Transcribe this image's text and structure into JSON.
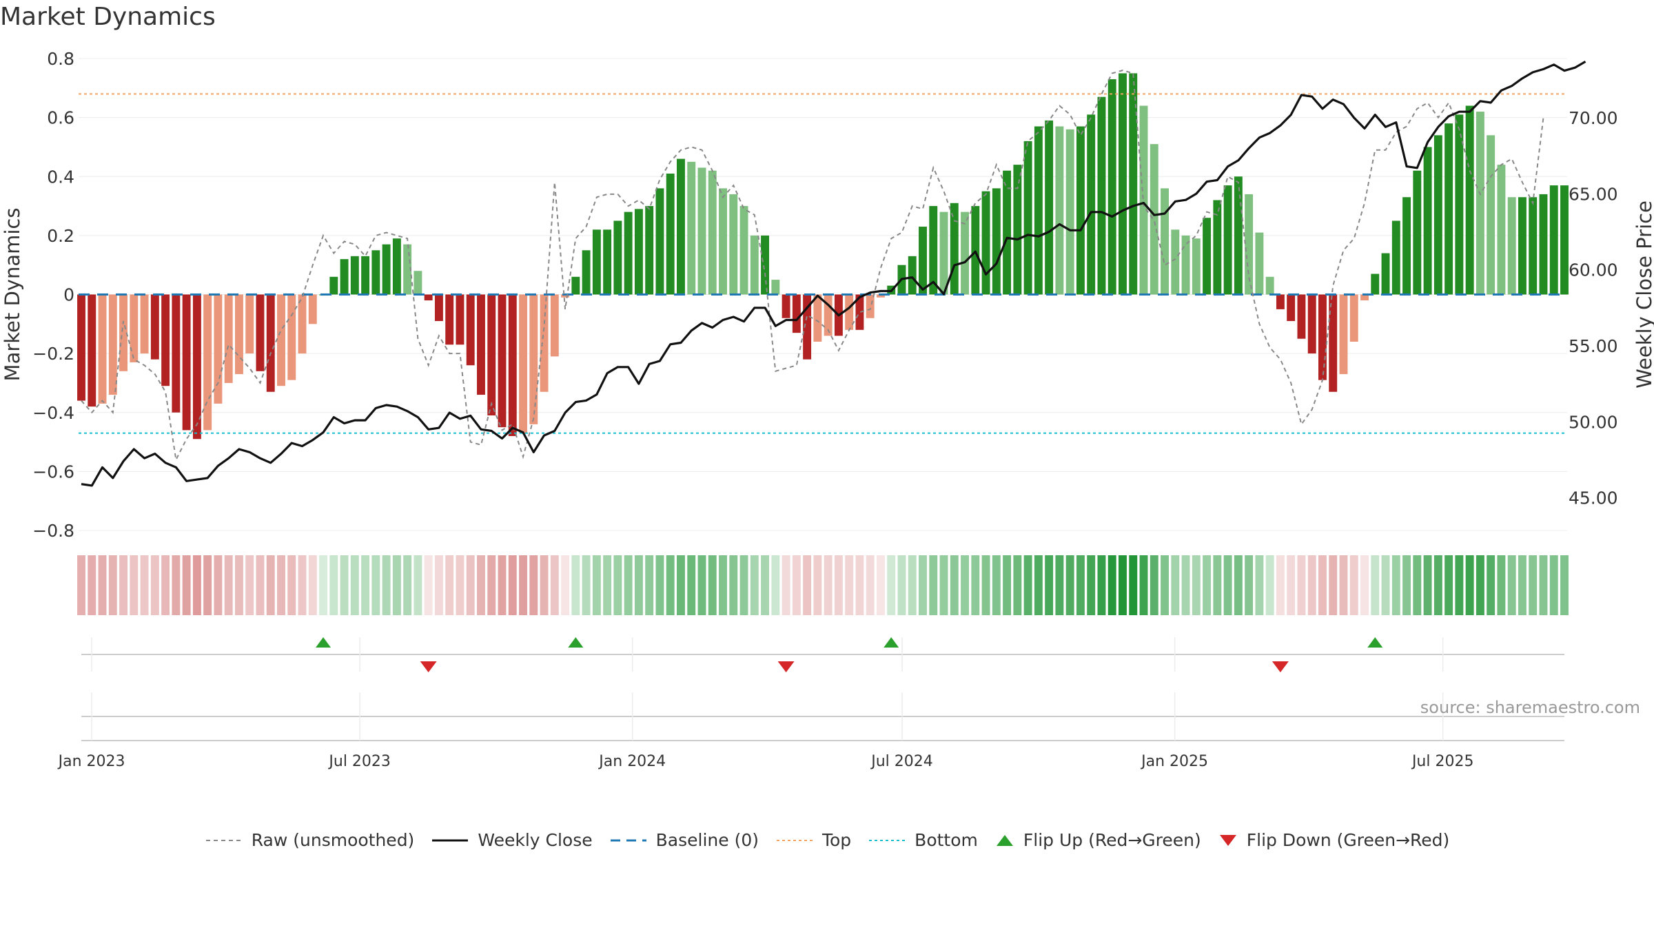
{
  "page": {
    "title": "Market Dynamics",
    "source": "source: sharemaestro.com"
  },
  "colors": {
    "strong_green": "#228b22",
    "light_green": "#7fbf7f",
    "strong_red": "#b22222",
    "light_red": "#e9967a",
    "close_line": "#111111",
    "raw_line": "#888888",
    "baseline": "#1f77b4",
    "top": "#f4a460",
    "bottom": "#17becf",
    "flip_up": "#2ca02c",
    "flip_down": "#d62728"
  },
  "legend": [
    {
      "key": "raw",
      "label": "Raw (unsmoothed)"
    },
    {
      "key": "close",
      "label": "Weekly Close"
    },
    {
      "key": "baseline",
      "label": "Baseline (0)"
    },
    {
      "key": "top",
      "label": "Top"
    },
    {
      "key": "bottom",
      "label": "Bottom"
    },
    {
      "key": "flipup",
      "label": "Flip Up (Red→Green)"
    },
    {
      "key": "flipdown",
      "label": "Flip Down (Green→Red)"
    }
  ],
  "chart_data": {
    "type": "bar",
    "ylabel": "Market Dynamics",
    "y2label": "Weekly Close Price",
    "ylim": [
      -0.8,
      0.8
    ],
    "y2lim": [
      42.85,
      73.9
    ],
    "yticks": [
      "0.8",
      "0.6",
      "0.4",
      "0.2",
      "0",
      "−0.2",
      "−0.4",
      "−0.6",
      "−0.8"
    ],
    "yticks_values": [
      0.8,
      0.6,
      0.4,
      0.2,
      0,
      -0.2,
      -0.4,
      -0.6,
      -0.8
    ],
    "y2ticks": [
      "70.00",
      "65.00",
      "60.00",
      "55.00",
      "50.00",
      "45.00"
    ],
    "y2ticks_values": [
      70,
      65,
      60,
      55,
      50,
      45
    ],
    "xticks": [
      "Jan 2023",
      "Jul 2023",
      "Jan 2024",
      "Jul 2024",
      "Jan 2025",
      "Jul 2025"
    ],
    "xticks_dates": [
      "2023-01-01",
      "2023-07-01",
      "2024-01-01",
      "2024-07-01",
      "2025-01-01",
      "2025-07-01"
    ],
    "first_week": "2022-12-25",
    "last_week": "2025-09-21",
    "top_line": 0.68,
    "bottom_line": -0.47,
    "grid": true,
    "legend_position": "bottom-center",
    "series": [
      {
        "name": "Market Dynamics",
        "values": [
          -0.36,
          -0.38,
          -0.37,
          -0.34,
          -0.26,
          -0.23,
          -0.2,
          -0.22,
          -0.31,
          -0.4,
          -0.46,
          -0.49,
          -0.46,
          -0.37,
          -0.3,
          -0.27,
          -0.2,
          -0.26,
          -0.33,
          -0.31,
          -0.29,
          -0.2,
          -0.1,
          0,
          0.06,
          0.12,
          0.13,
          0.13,
          0.15,
          0.17,
          0.19,
          0.17,
          0.08,
          -0.02,
          -0.09,
          -0.17,
          -0.17,
          -0.24,
          -0.34,
          -0.41,
          -0.45,
          -0.48,
          -0.47,
          -0.44,
          -0.33,
          -0.21,
          -0.01,
          0.06,
          0.15,
          0.22,
          0.22,
          0.25,
          0.28,
          0.29,
          0.3,
          0.36,
          0.41,
          0.46,
          0.45,
          0.43,
          0.42,
          0.36,
          0.34,
          0.3,
          0.2,
          0.2,
          0.05,
          -0.08,
          -0.13,
          -0.22,
          -0.16,
          -0.14,
          -0.14,
          -0.12,
          -0.12,
          -0.08,
          -0.01,
          0.03,
          0.1,
          0.13,
          0.23,
          0.3,
          0.28,
          0.31,
          0.28,
          0.3,
          0.35,
          0.36,
          0.42,
          0.44,
          0.52,
          0.57,
          0.59,
          0.57,
          0.56,
          0.57,
          0.61,
          0.67,
          0.73,
          0.75,
          0.75,
          0.64,
          0.51,
          0.36,
          0.22,
          0.2,
          0.19,
          0.26,
          0.32,
          0.37,
          0.4,
          0.34,
          0.21,
          0.06,
          -0.05,
          -0.09,
          -0.15,
          -0.2,
          -0.29,
          -0.33,
          -0.27,
          -0.16,
          -0.02,
          0.07,
          0.14,
          0.25,
          0.33,
          0.42,
          0.5,
          0.54,
          0.58,
          0.61,
          0.64,
          0.62,
          0.54,
          0.44,
          0.33,
          0.33,
          0.33,
          0.34,
          0.37,
          0.37
        ]
      },
      {
        "name": "Raw (unsmoothed)",
        "values": [
          -0.36,
          -0.4,
          -0.36,
          -0.4,
          -0.09,
          -0.22,
          -0.24,
          -0.27,
          -0.33,
          -0.56,
          -0.49,
          -0.44,
          -0.36,
          -0.3,
          -0.17,
          -0.21,
          -0.25,
          -0.3,
          -0.2,
          -0.12,
          -0.07,
          -0.01,
          0.1,
          0.2,
          0.14,
          0.18,
          0.17,
          0.13,
          0.2,
          0.21,
          0.2,
          0.19,
          -0.15,
          -0.24,
          -0.14,
          -0.2,
          -0.2,
          -0.5,
          -0.51,
          -0.37,
          -0.46,
          -0.44,
          -0.55,
          -0.42,
          -0.11,
          0.38,
          -0.05,
          0.19,
          0.23,
          0.33,
          0.34,
          0.34,
          0.3,
          0.32,
          0.29,
          0.39,
          0.45,
          0.49,
          0.5,
          0.49,
          0.42,
          0.33,
          0.37,
          0.29,
          0.27,
          0.07,
          -0.26,
          -0.25,
          -0.24,
          -0.07,
          -0.09,
          -0.12,
          -0.19,
          -0.12,
          -0.06,
          -0.05,
          0.09,
          0.19,
          0.21,
          0.3,
          0.29,
          0.43,
          0.35,
          0.25,
          0.24,
          0.31,
          0.34,
          0.44,
          0.36,
          0.36,
          0.52,
          0.55,
          0.59,
          0.64,
          0.61,
          0.54,
          0.6,
          0.68,
          0.75,
          0.76,
          0.75,
          0.3,
          0.25,
          0.1,
          0.12,
          0.17,
          0.2,
          0.28,
          0.27,
          0.4,
          0.38,
          0.06,
          -0.1,
          -0.18,
          -0.22,
          -0.3,
          -0.44,
          -0.39,
          -0.29,
          0.03,
          0.15,
          0.19,
          0.31,
          0.49,
          0.49,
          0.55,
          0.57,
          0.63,
          0.65,
          0.6,
          0.65,
          0.56,
          0.42,
          0.34,
          0.4,
          0.44,
          0.46,
          0.38,
          0.31,
          0.6
        ]
      },
      {
        "name": "Weekly Close",
        "values": [
          45.9,
          45.8,
          47.0,
          46.3,
          47.4,
          48.2,
          47.6,
          47.9,
          47.3,
          47.0,
          46.1,
          46.2,
          46.3,
          47.1,
          47.6,
          48.2,
          48.0,
          47.6,
          47.3,
          47.9,
          48.6,
          48.4,
          48.8,
          49.3,
          50.3,
          49.9,
          50.1,
          50.1,
          50.9,
          51.1,
          51.0,
          50.7,
          50.3,
          49.5,
          49.6,
          50.6,
          50.2,
          50.4,
          49.5,
          49.4,
          48.9,
          49.6,
          49.3,
          48.0,
          49.1,
          49.4,
          50.6,
          51.3,
          51.4,
          51.8,
          53.2,
          53.6,
          53.6,
          52.5,
          53.8,
          54.0,
          55.1,
          55.2,
          56.0,
          56.5,
          56.2,
          56.7,
          56.9,
          56.6,
          57.5,
          57.5,
          56.3,
          56.7,
          56.7,
          57.5,
          58.3,
          57.7,
          57.0,
          57.5,
          58.2,
          58.5,
          58.6,
          58.6,
          59.4,
          59.5,
          58.7,
          59.2,
          58.4,
          60.3,
          60.5,
          61.2,
          59.7,
          60.4,
          62.1,
          62.0,
          62.3,
          62.2,
          62.5,
          63.0,
          62.6,
          62.6,
          63.8,
          63.8,
          63.5,
          63.9,
          64.2,
          64.4,
          63.6,
          63.7,
          64.5,
          64.6,
          65.0,
          65.8,
          65.9,
          66.8,
          67.2,
          68.0,
          68.7,
          69.0,
          69.5,
          70.2,
          71.5,
          71.4,
          70.6,
          71.2,
          70.9,
          70.0,
          69.3,
          70.2,
          69.4,
          69.7,
          66.8,
          66.7,
          68.4,
          69.4,
          70.1,
          70.4,
          70.4,
          71.1,
          71.0,
          71.8,
          72.1,
          72.6,
          73.0,
          73.2,
          73.5,
          73.1,
          73.3,
          73.7
        ]
      }
    ]
  }
}
